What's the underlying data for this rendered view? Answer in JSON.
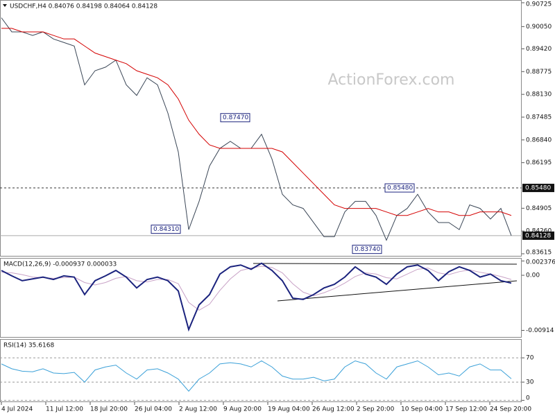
{
  "watermark": "ActionForex.com",
  "chart_data": [
    {
      "type": "line",
      "title": "USDCHF,H4  0.84076 0.84198 0.84064 0.84128",
      "xlim": [
        0,
        150.4
      ],
      "ylim": [
        0.83537,
        0.90803
      ],
      "yticks": [
        0.90725,
        {
          "value": 0.9005,
          "label": "0.90050"
        },
        {
          "value": 0.8942,
          "label": "0.89420"
        },
        0.88775,
        {
          "value": 0.8813,
          "label": "0.88130"
        },
        0.87485,
        {
          "value": 0.8684,
          "label": "0.86840"
        },
        0.86195,
        0.84905,
        {
          "value": 0.8426,
          "label": "0.84260"
        },
        0.83615
      ],
      "grid": false,
      "x": [
        0.4,
        3.4,
        6.4,
        9.4,
        12.4,
        15.4,
        18.4,
        21.4,
        24.4,
        27.4,
        30.4,
        33.4,
        36.4,
        39.4,
        42.4,
        45.4,
        48.4,
        51.4,
        54.4,
        57.4,
        60.4,
        63.4,
        66.4,
        69.4,
        72.4,
        75.4,
        78.4,
        81.4,
        84.4,
        87.4,
        90.4,
        93.4,
        96.4,
        99.4,
        102.4,
        105.4,
        108.4,
        111.4,
        114.4,
        117.4,
        120.4,
        123.4,
        126.4,
        129.4,
        132.4,
        135.4,
        138.4,
        141.4,
        144.4,
        147.4
      ],
      "series": [
        {
          "color": "#3a4656",
          "values": [
            0.903,
            0.899,
            0.899,
            0.898,
            0.899,
            0.897,
            0.896,
            0.895,
            0.884,
            0.888,
            0.889,
            0.891,
            0.884,
            0.881,
            0.886,
            0.884,
            0.876,
            0.865,
            0.843,
            0.851,
            0.861,
            0.866,
            0.868,
            0.866,
            0.866,
            0.87,
            0.863,
            0.853,
            0.85,
            0.849,
            0.845,
            0.841,
            0.841,
            0.848,
            0.851,
            0.851,
            0.847,
            0.84,
            0.847,
            0.849,
            0.853,
            0.848,
            0.845,
            0.845,
            0.843,
            0.85,
            0.849,
            0.846,
            0.849,
            0.8413
          ]
        },
        {
          "color": "#d40000",
          "values": [
            0.9,
            0.9,
            0.899,
            0.899,
            0.899,
            0.898,
            0.897,
            0.897,
            0.895,
            0.893,
            0.892,
            0.891,
            0.89,
            0.888,
            0.887,
            0.886,
            0.884,
            0.88,
            0.874,
            0.87,
            0.867,
            0.866,
            0.866,
            0.866,
            0.866,
            0.866,
            0.866,
            0.865,
            0.862,
            0.859,
            0.856,
            0.853,
            0.85,
            0.849,
            0.849,
            0.849,
            0.849,
            0.848,
            0.847,
            0.847,
            0.848,
            0.849,
            0.848,
            0.848,
            0.847,
            0.847,
            0.848,
            0.848,
            0.848,
            0.847
          ]
        }
      ],
      "annotations": [
        {
          "x": 63.6,
          "value": 0.8747,
          "label": "0.87470"
        },
        {
          "x": 43.6,
          "value": 0.8431,
          "label": "0.84310"
        },
        {
          "x": 111,
          "value": 0.8548,
          "label": "0.85480"
        },
        {
          "x": 101.6,
          "value": 0.8374,
          "label": "0.83740"
        }
      ],
      "level": {
        "value": 0.8548,
        "label": "0.85480"
      },
      "last_price": {
        "value": 0.84128,
        "label": "0.84128"
      }
    },
    {
      "type": "line",
      "title": "MACD(12,26,9) -0.000937 0.000033",
      "xlim": [
        0,
        150.4
      ],
      "ylim": [
        -0.01035,
        0.00288
      ],
      "yticks": [
        0.002376,
        {
          "value": 0,
          "label": "0.00"
        },
        -0.00914
      ],
      "grid": false,
      "x": [
        0.4,
        3.4,
        6.4,
        9.4,
        12.4,
        15.4,
        18.4,
        21.4,
        24.4,
        27.4,
        30.4,
        33.4,
        36.4,
        39.4,
        42.4,
        45.4,
        48.4,
        51.4,
        54.4,
        57.4,
        60.4,
        63.4,
        66.4,
        69.4,
        72.4,
        75.4,
        78.4,
        81.4,
        84.4,
        87.4,
        90.4,
        93.4,
        96.4,
        99.4,
        102.4,
        105.4,
        108.4,
        111.4,
        114.4,
        117.4,
        120.4,
        123.4,
        126.4,
        129.4,
        132.4,
        135.4,
        138.4,
        141.4,
        144.4,
        147.4
      ],
      "series": [
        {
          "color": "#c8a2c6",
          "values": [
            0.0005,
            0.0004,
            0.0001,
            -0.0003,
            -0.0004,
            -0.0005,
            -0.0004,
            -0.0003,
            -0.0012,
            -0.0016,
            -0.0012,
            -0.0005,
            -0.0002,
            -0.0009,
            -0.0011,
            -0.0007,
            -0.0007,
            -0.0014,
            -0.0045,
            -0.0058,
            -0.0048,
            -0.0025,
            -0.0006,
            0.0008,
            0.0012,
            0.0015,
            0.0013,
            0.0004,
            -0.0014,
            -0.0028,
            -0.0034,
            -0.0029,
            -0.0022,
            -0.0013,
            -0.0002,
            0.0004,
            0.0002,
            -0.0004,
            -0.0006,
            0.0002,
            0.001,
            0.0012,
            0.0004,
            0.0001,
            0.0006,
            0.0009,
            0.0005,
            0.0002,
            -0.0002,
            -0.0007
          ]
        },
        {
          "color": "#1b237e",
          "values": [
            0.0008,
            -0.0001,
            -0.0009,
            -0.0006,
            -0.0003,
            -0.0007,
            -0.0001,
            -0.0003,
            -0.0032,
            -0.0009,
            -0.0001,
            0.0008,
            -0.0003,
            -0.0021,
            -0.0007,
            -0.0003,
            -0.0009,
            -0.0026,
            -0.009,
            -0.0049,
            -0.0032,
            0.0002,
            0.0014,
            0.0017,
            0.001,
            0.002,
            0.0008,
            -0.0009,
            -0.0038,
            -0.004,
            -0.0032,
            -0.0021,
            -0.0015,
            -0.0003,
            0.0014,
            0.0002,
            -0.0003,
            -0.0015,
            0.0002,
            0.0014,
            0.0017,
            0.0008,
            -0.0009,
            0.0006,
            0.0014,
            0.0008,
            -0.0003,
            0.0002,
            -0.0009,
            -0.0013
          ]
        }
      ]
    },
    {
      "type": "line",
      "title": "RSI(14) 35.6168",
      "xlim": [
        0,
        150.4
      ],
      "ylim": [
        -3,
        101
      ],
      "yticks": [
        70,
        30,
        0
      ],
      "grid": true,
      "x": [
        0.4,
        3.4,
        6.4,
        9.4,
        12.4,
        15.4,
        18.4,
        21.4,
        24.4,
        27.4,
        30.4,
        33.4,
        36.4,
        39.4,
        42.4,
        45.4,
        48.4,
        51.4,
        54.4,
        57.4,
        60.4,
        63.4,
        66.4,
        69.4,
        72.4,
        75.4,
        78.4,
        81.4,
        84.4,
        87.4,
        90.4,
        93.4,
        96.4,
        99.4,
        102.4,
        105.4,
        108.4,
        111.4,
        114.4,
        117.4,
        120.4,
        123.4,
        126.4,
        129.4,
        132.4,
        135.4,
        138.4,
        141.4,
        144.4,
        147.4
      ],
      "series": [
        {
          "color": "#3aa0d8",
          "values": [
            60,
            52,
            48,
            47,
            52,
            45,
            44,
            46,
            30,
            50,
            55,
            58,
            45,
            35,
            50,
            52,
            45,
            35,
            15,
            35,
            45,
            60,
            62,
            60,
            55,
            65,
            55,
            40,
            35,
            35,
            38,
            32,
            35,
            55,
            65,
            60,
            45,
            35,
            55,
            60,
            65,
            55,
            42,
            45,
            40,
            55,
            60,
            50,
            50,
            35.6
          ]
        }
      ],
      "xticks": [
        {
          "value": 0.4,
          "label": "4 Jul 2024"
        },
        {
          "value": 13.2,
          "label": "11 Jul 12:00"
        },
        {
          "value": 26,
          "label": "18 Jul 20:00"
        },
        {
          "value": 38.8,
          "label": "26 Jul 04:00"
        },
        {
          "value": 51.6,
          "label": "2 Aug 12:00"
        },
        {
          "value": 64.4,
          "label": "9 Aug 20:00"
        },
        {
          "value": 77.2,
          "label": "19 Aug 04:00"
        },
        {
          "value": 90,
          "label": "26 Aug 12:00"
        },
        {
          "value": 102.8,
          "label": "2 Sep 20:00"
        },
        {
          "value": 115.6,
          "label": "10 Sep 04:00"
        },
        {
          "value": 128.4,
          "label": "17 Sep 12:00"
        },
        {
          "value": 141.2,
          "label": "24 Sep 20:00"
        }
      ]
    }
  ]
}
